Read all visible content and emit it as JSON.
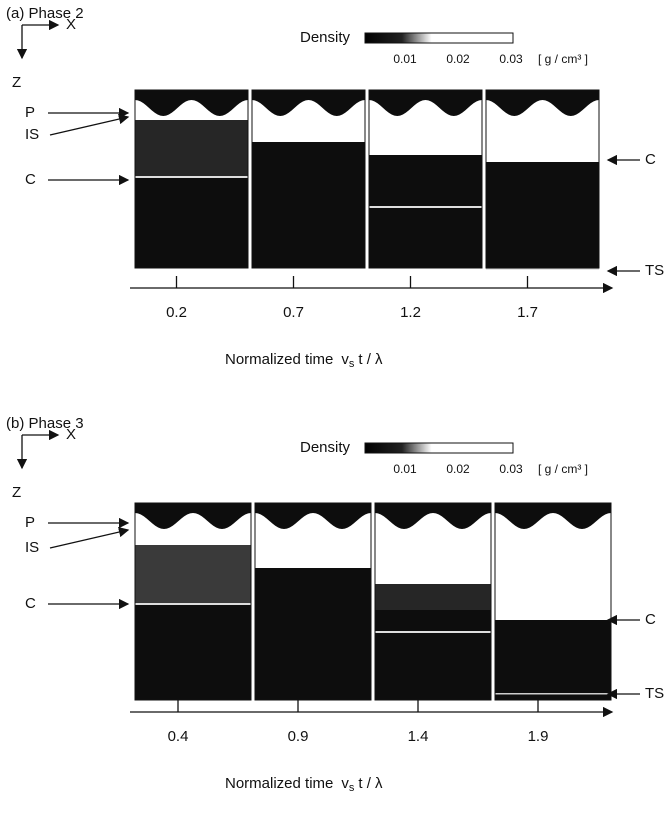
{
  "panels": [
    {
      "label": "(a) Phase 2",
      "density_label": "Density",
      "density_ticks": [
        0.01,
        0.02,
        0.03
      ],
      "density_unit": "[ g / cm³ ]",
      "axis_x": "X",
      "axis_z": "Z",
      "markers_left": [
        "P",
        "IS",
        "C"
      ],
      "markers_right": [
        "C",
        "TS"
      ],
      "times": [
        0.2,
        0.7,
        1.2,
        1.7
      ],
      "time_axis_label": "Normalized time",
      "time_symbol": "v",
      "time_subscript": "s",
      "time_rest": "t / λ"
    },
    {
      "label": "(b) Phase 3",
      "density_label": "Density",
      "density_ticks": [
        0.01,
        0.02,
        0.03
      ],
      "density_unit": "[ g / cm³ ]",
      "axis_x": "X",
      "axis_z": "Z",
      "markers_left": [
        "P",
        "IS",
        "C"
      ],
      "markers_right": [
        "C",
        "TS"
      ],
      "times": [
        0.4,
        0.9,
        1.4,
        1.9
      ],
      "time_axis_label": "Normalized time",
      "time_symbol": "v",
      "time_subscript": "s",
      "time_rest": "t / λ"
    }
  ]
}
